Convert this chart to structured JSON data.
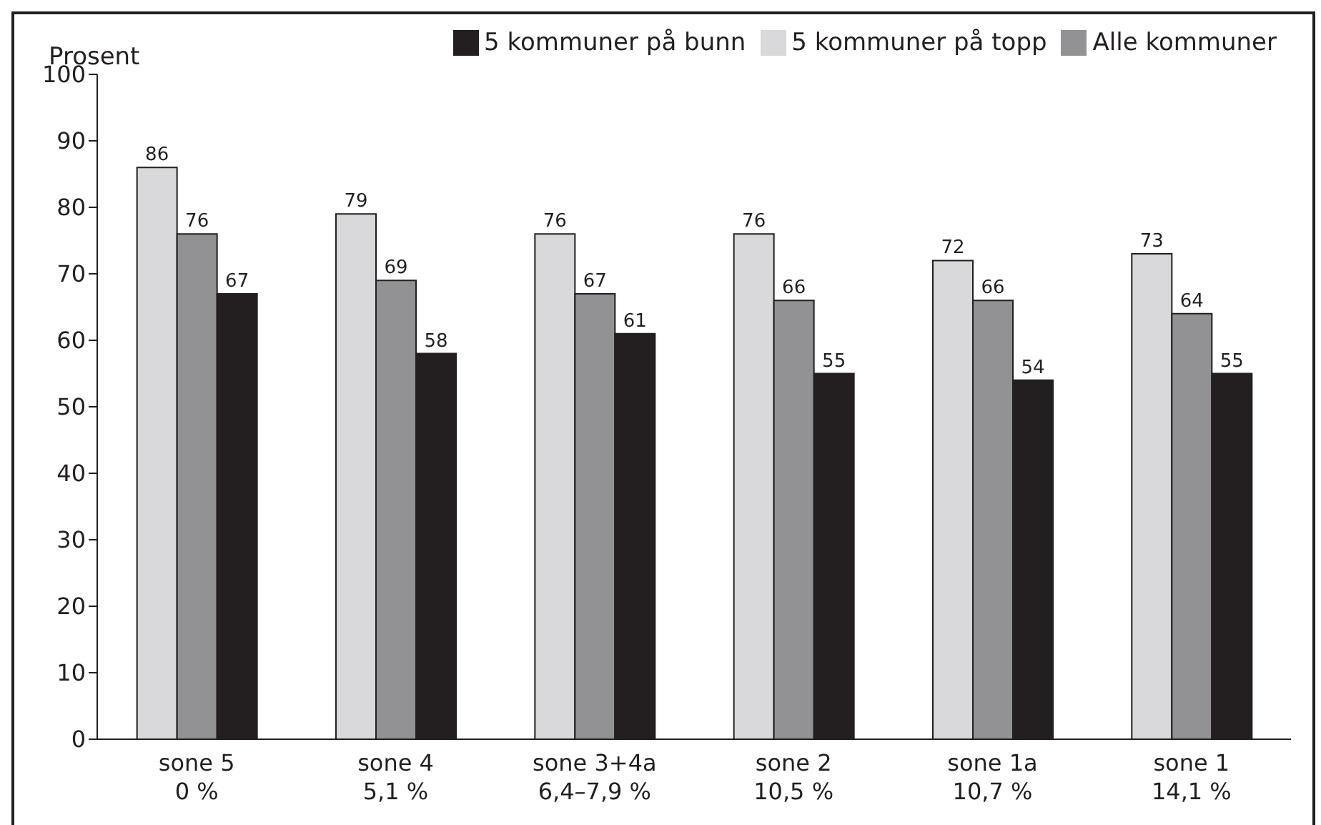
{
  "chart_data": {
    "type": "bar",
    "ylabel": "Prosent",
    "categories": [
      "sone 5\n0 %",
      "sone 4\n5,1 %",
      "sone 3+4a\n6,4–7,9 %",
      "sone 2\n10,5 %",
      "sone 1a\n10,7 %",
      "sone 1\n14,1 %"
    ],
    "series": [
      {
        "name": "5 kommuner på topp",
        "color": "#d9d9db",
        "values": [
          86,
          79,
          76,
          76,
          72,
          73
        ]
      },
      {
        "name": "Alle kommuner",
        "color": "#929295",
        "values": [
          76,
          69,
          67,
          66,
          66,
          64
        ]
      },
      {
        "name": "5 kommuner på bunn",
        "color": "#231f20",
        "values": [
          67,
          58,
          61,
          55,
          54,
          55
        ]
      }
    ],
    "ylim": [
      0,
      100
    ],
    "yticks": [
      0,
      10,
      20,
      30,
      40,
      50,
      60,
      70,
      80,
      90,
      100
    ],
    "grid": false,
    "legend": "top right",
    "data_labels": true
  }
}
